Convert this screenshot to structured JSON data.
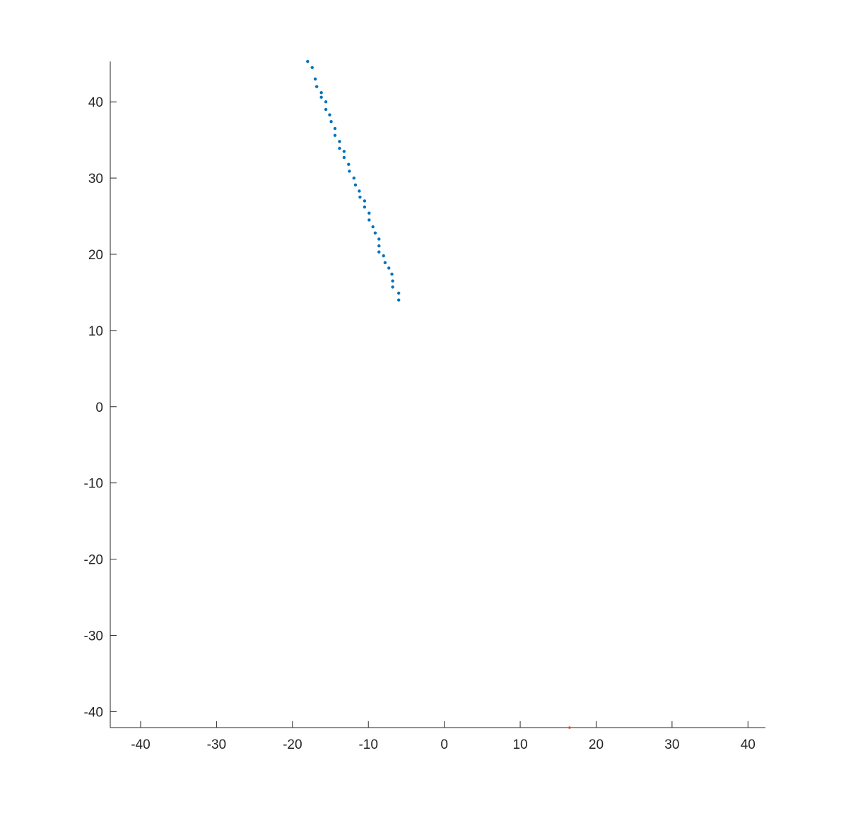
{
  "chart_data": {
    "type": "scatter",
    "title": "",
    "xlabel": "",
    "ylabel": "",
    "xlim": [
      -44,
      42.3
    ],
    "ylim": [
      -42.1,
      45.3
    ],
    "grid": false,
    "x_ticks": [
      -40,
      -30,
      -20,
      -10,
      0,
      10,
      20,
      30,
      40
    ],
    "y_ticks": [
      -40,
      -30,
      -20,
      -10,
      0,
      10,
      20,
      30,
      40
    ],
    "x_tick_labels": [
      "-40",
      "-30",
      "-20",
      "-10",
      "0",
      "10",
      "20",
      "30",
      "40"
    ],
    "y_tick_labels": [
      "-40",
      "-30",
      "-20",
      "-10",
      "0",
      "10",
      "20",
      "30",
      "40"
    ],
    "series": [
      {
        "color": "#0072BD",
        "points": [
          [
            -18.0,
            45.3
          ],
          [
            -17.4,
            44.5
          ],
          [
            -17.0,
            43.0
          ],
          [
            -16.8,
            42.0
          ],
          [
            -16.2,
            41.2
          ],
          [
            -16.2,
            40.6
          ],
          [
            -15.6,
            40.0
          ],
          [
            -15.6,
            39.0
          ],
          [
            -15.1,
            38.3
          ],
          [
            -14.9,
            37.4
          ],
          [
            -14.4,
            36.5
          ],
          [
            -14.4,
            35.6
          ],
          [
            -13.8,
            34.8
          ],
          [
            -13.8,
            33.9
          ],
          [
            -13.2,
            33.5
          ],
          [
            -13.2,
            32.7
          ],
          [
            -12.6,
            31.8
          ],
          [
            -12.5,
            30.9
          ],
          [
            -11.9,
            30.0
          ],
          [
            -11.7,
            29.1
          ],
          [
            -11.2,
            28.3
          ],
          [
            -11.1,
            27.5
          ],
          [
            -10.5,
            27.0
          ],
          [
            -10.5,
            26.2
          ],
          [
            -9.9,
            25.4
          ],
          [
            -9.9,
            24.5
          ],
          [
            -9.4,
            23.6
          ],
          [
            -9.1,
            22.8
          ],
          [
            -8.6,
            22.0
          ],
          [
            -8.6,
            21.1
          ],
          [
            -8.6,
            20.3
          ],
          [
            -8.0,
            19.8
          ],
          [
            -7.8,
            18.9
          ],
          [
            -7.3,
            18.2
          ],
          [
            -6.9,
            17.4
          ],
          [
            -6.8,
            16.5
          ],
          [
            -6.8,
            15.7
          ],
          [
            -6.0,
            14.9
          ],
          [
            -6.0,
            14.0
          ]
        ]
      },
      {
        "color": "#D95319",
        "points": [
          [
            16.5,
            -42.1
          ]
        ]
      }
    ]
  }
}
